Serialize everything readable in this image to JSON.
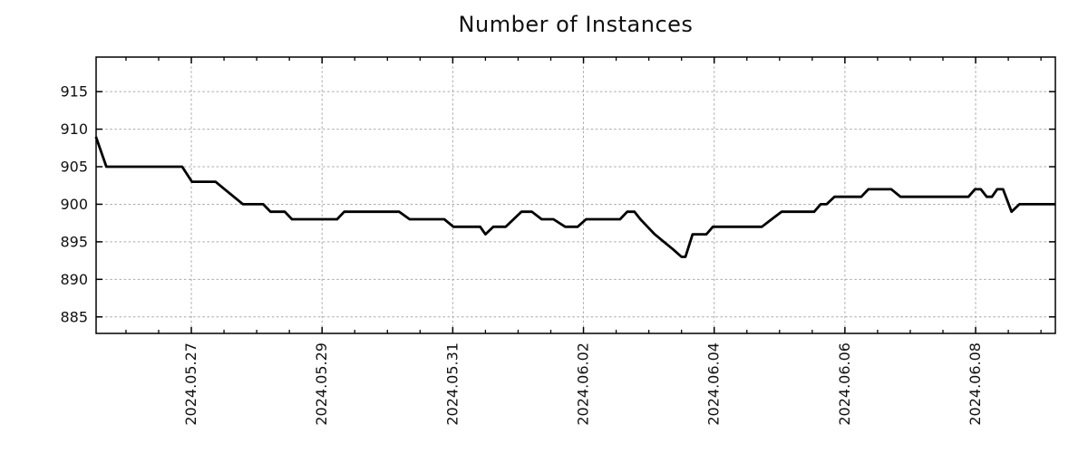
{
  "figure": {
    "background": "#ffffff",
    "text_color": "#111111"
  },
  "chart_data": {
    "type": "line",
    "title": "Number of Instances",
    "xlabel": "",
    "ylabel": "",
    "grid": {
      "visible": true,
      "style": "dashed",
      "color": "#a9a9a9"
    },
    "legend": {
      "visible": false
    },
    "x_axis": {
      "unit": "days since 2024-05-25 00:00",
      "range": [
        0.543,
        15.22
      ],
      "major_ticks": [
        2,
        4,
        6,
        8,
        10,
        12,
        14
      ],
      "major_tick_labels": [
        "2024.05.27",
        "2024.05.29",
        "2024.05.31",
        "2024.06.02",
        "2024.06.04",
        "2024.06.06",
        "2024.06.08"
      ],
      "minor_tick_step": 0.5,
      "tick_label_rotation_deg": -90
    },
    "y_axis": {
      "range": [
        882.8,
        919.6
      ],
      "major_ticks": [
        885,
        890,
        895,
        900,
        905,
        910,
        915
      ],
      "major_tick_labels": [
        "885",
        "890",
        "895",
        "900",
        "905",
        "910",
        "915"
      ]
    },
    "series": [
      {
        "color": "#000000",
        "line_width": 2.8,
        "points": [
          [
            0.54,
            909
          ],
          [
            0.7,
            905
          ],
          [
            1.86,
            905
          ],
          [
            2.01,
            903
          ],
          [
            2.37,
            903
          ],
          [
            2.51,
            902
          ],
          [
            2.65,
            901
          ],
          [
            2.79,
            900
          ],
          [
            3.1,
            900
          ],
          [
            3.21,
            899
          ],
          [
            3.43,
            899
          ],
          [
            3.54,
            898
          ],
          [
            4.23,
            898
          ],
          [
            4.34,
            899
          ],
          [
            5.18,
            899
          ],
          [
            5.34,
            898
          ],
          [
            5.87,
            898
          ],
          [
            6.01,
            897
          ],
          [
            6.42,
            897
          ],
          [
            6.5,
            896
          ],
          [
            6.62,
            897
          ],
          [
            6.81,
            897
          ],
          [
            7.05,
            899
          ],
          [
            7.21,
            899
          ],
          [
            7.36,
            898
          ],
          [
            7.54,
            898
          ],
          [
            7.72,
            897
          ],
          [
            7.91,
            897
          ],
          [
            8.04,
            898
          ],
          [
            8.56,
            898
          ],
          [
            8.67,
            899
          ],
          [
            8.78,
            899
          ],
          [
            8.87,
            898
          ],
          [
            8.98,
            897
          ],
          [
            9.09,
            896
          ],
          [
            9.23,
            895
          ],
          [
            9.37,
            894
          ],
          [
            9.5,
            893
          ],
          [
            9.56,
            893
          ],
          [
            9.67,
            896
          ],
          [
            9.88,
            896
          ],
          [
            9.98,
            897
          ],
          [
            10.73,
            897
          ],
          [
            10.88,
            898
          ],
          [
            11.03,
            899
          ],
          [
            11.53,
            899
          ],
          [
            11.63,
            900
          ],
          [
            11.72,
            900
          ],
          [
            11.84,
            901
          ],
          [
            12.25,
            901
          ],
          [
            12.36,
            902
          ],
          [
            12.71,
            902
          ],
          [
            12.85,
            901
          ],
          [
            13.89,
            901
          ],
          [
            13.99,
            902
          ],
          [
            14.08,
            902
          ],
          [
            14.17,
            901
          ],
          [
            14.25,
            901
          ],
          [
            14.33,
            902
          ],
          [
            14.42,
            902
          ],
          [
            14.55,
            899
          ],
          [
            14.67,
            900
          ],
          [
            15.22,
            900
          ]
        ]
      }
    ]
  }
}
